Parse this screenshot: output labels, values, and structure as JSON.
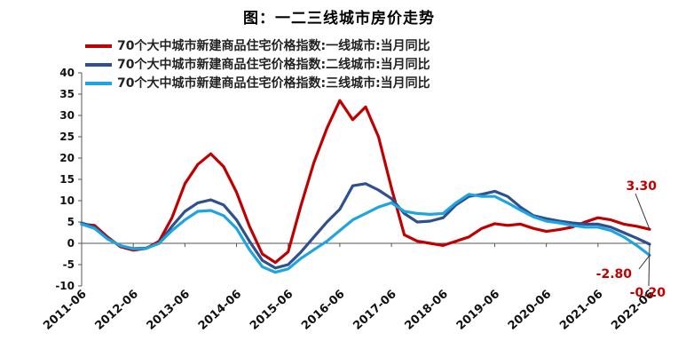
{
  "title": "图：一二三线城市房价走势",
  "chart_data": {
    "type": "line",
    "title": "图：一二三线城市房价走势",
    "xlabel": "",
    "ylabel": "",
    "ylim": [
      -10,
      40
    ],
    "yticks": [
      -10,
      -5,
      0,
      5,
      10,
      15,
      20,
      25,
      30,
      35,
      40
    ],
    "xticks": [
      "2011-06",
      "2012-06",
      "2013-06",
      "2014-06",
      "2015-06",
      "2016-06",
      "2017-06",
      "2018-06",
      "2019-06",
      "2020-06",
      "2021-06",
      "2022-06"
    ],
    "legend_position": "top-left",
    "grid": false,
    "series": [
      {
        "name": "70个大中城市新建商品住宅价格指数:一线城市:当月同比",
        "color": "#c00000",
        "points": [
          [
            "2011-06",
            4.5
          ],
          [
            "2011-09",
            4.2
          ],
          [
            "2011-12",
            1.5
          ],
          [
            "2012-03",
            -0.8
          ],
          [
            "2012-06",
            -1.6
          ],
          [
            "2012-09",
            -1.2
          ],
          [
            "2012-12",
            0.5
          ],
          [
            "2013-03",
            6
          ],
          [
            "2013-06",
            14
          ],
          [
            "2013-09",
            18.5
          ],
          [
            "2013-12",
            21
          ],
          [
            "2014-03",
            18
          ],
          [
            "2014-06",
            12
          ],
          [
            "2014-09",
            4
          ],
          [
            "2014-12",
            -2.5
          ],
          [
            "2015-03",
            -4.5
          ],
          [
            "2015-06",
            -2
          ],
          [
            "2015-09",
            9
          ],
          [
            "2015-12",
            19
          ],
          [
            "2016-03",
            27
          ],
          [
            "2016-06",
            33.5
          ],
          [
            "2016-09",
            29
          ],
          [
            "2016-12",
            32
          ],
          [
            "2017-03",
            25
          ],
          [
            "2017-06",
            13
          ],
          [
            "2017-09",
            2
          ],
          [
            "2017-12",
            0.5
          ],
          [
            "2018-03",
            0
          ],
          [
            "2018-06",
            -0.5
          ],
          [
            "2018-09",
            0.5
          ],
          [
            "2018-12",
            1.5
          ],
          [
            "2019-03",
            3.5
          ],
          [
            "2019-06",
            4.6
          ],
          [
            "2019-09",
            4.2
          ],
          [
            "2019-12",
            4.5
          ],
          [
            "2020-03",
            3.5
          ],
          [
            "2020-06",
            2.8
          ],
          [
            "2020-09",
            3.2
          ],
          [
            "2020-12",
            3.8
          ],
          [
            "2021-03",
            5
          ],
          [
            "2021-06",
            6
          ],
          [
            "2021-09",
            5.5
          ],
          [
            "2021-12",
            4.5
          ],
          [
            "2022-03",
            4
          ],
          [
            "2022-06",
            3.3
          ]
        ]
      },
      {
        "name": "70个大中城市新建商品住宅价格指数:二线城市:当月同比",
        "color": "#2f4f8f",
        "points": [
          [
            "2011-06",
            4.8
          ],
          [
            "2011-09",
            3.8
          ],
          [
            "2011-12",
            1.2
          ],
          [
            "2012-03",
            -0.6
          ],
          [
            "2012-06",
            -1.2
          ],
          [
            "2012-09",
            -1.1
          ],
          [
            "2012-12",
            0
          ],
          [
            "2013-03",
            4
          ],
          [
            "2013-06",
            7.5
          ],
          [
            "2013-09",
            9.5
          ],
          [
            "2013-12",
            10.2
          ],
          [
            "2014-03",
            9
          ],
          [
            "2014-06",
            5.5
          ],
          [
            "2014-09",
            0.5
          ],
          [
            "2014-12",
            -4
          ],
          [
            "2015-03",
            -5.8
          ],
          [
            "2015-06",
            -5
          ],
          [
            "2015-09",
            -2
          ],
          [
            "2015-12",
            1.5
          ],
          [
            "2016-03",
            5
          ],
          [
            "2016-06",
            8
          ],
          [
            "2016-09",
            13.5
          ],
          [
            "2016-12",
            14
          ],
          [
            "2017-03",
            12.5
          ],
          [
            "2017-06",
            10.5
          ],
          [
            "2017-09",
            7
          ],
          [
            "2017-12",
            5
          ],
          [
            "2018-03",
            5.2
          ],
          [
            "2018-06",
            6
          ],
          [
            "2018-09",
            9
          ],
          [
            "2018-12",
            11
          ],
          [
            "2019-03",
            11.5
          ],
          [
            "2019-06",
            12.2
          ],
          [
            "2019-09",
            11
          ],
          [
            "2019-12",
            8.5
          ],
          [
            "2020-03",
            6.5
          ],
          [
            "2020-06",
            5.8
          ],
          [
            "2020-09",
            5.2
          ],
          [
            "2020-12",
            4.8
          ],
          [
            "2021-03",
            4.5
          ],
          [
            "2021-06",
            4.5
          ],
          [
            "2021-09",
            3.8
          ],
          [
            "2021-12",
            2.5
          ],
          [
            "2022-03",
            1.2
          ],
          [
            "2022-06",
            -0.2
          ]
        ]
      },
      {
        "name": "70个大中城市新建商品住宅价格指数:三线城市:当月同比",
        "color": "#1ea5df",
        "points": [
          [
            "2011-06",
            4.5
          ],
          [
            "2011-09",
            3.5
          ],
          [
            "2011-12",
            1
          ],
          [
            "2012-03",
            -0.5
          ],
          [
            "2012-06",
            -1.3
          ],
          [
            "2012-09",
            -1.2
          ],
          [
            "2012-12",
            0
          ],
          [
            "2013-03",
            3
          ],
          [
            "2013-06",
            5.5
          ],
          [
            "2013-09",
            7.5
          ],
          [
            "2013-12",
            7.7
          ],
          [
            "2014-03",
            6.5
          ],
          [
            "2014-06",
            3.5
          ],
          [
            "2014-09",
            -1.5
          ],
          [
            "2014-12",
            -5.5
          ],
          [
            "2015-03",
            -6.8
          ],
          [
            "2015-06",
            -6
          ],
          [
            "2015-09",
            -3.5
          ],
          [
            "2015-12",
            -1.5
          ],
          [
            "2016-03",
            0.5
          ],
          [
            "2016-06",
            3
          ],
          [
            "2016-09",
            5.5
          ],
          [
            "2016-12",
            7
          ],
          [
            "2017-03",
            8.5
          ],
          [
            "2017-06",
            9.5
          ],
          [
            "2017-09",
            7.5
          ],
          [
            "2017-12",
            7
          ],
          [
            "2018-03",
            6.8
          ],
          [
            "2018-06",
            7
          ],
          [
            "2018-09",
            9.5
          ],
          [
            "2018-12",
            11.5
          ],
          [
            "2019-03",
            11
          ],
          [
            "2019-06",
            11
          ],
          [
            "2019-09",
            9.5
          ],
          [
            "2019-12",
            7.8
          ],
          [
            "2020-03",
            6.2
          ],
          [
            "2020-06",
            5.2
          ],
          [
            "2020-09",
            4.8
          ],
          [
            "2020-12",
            4.2
          ],
          [
            "2021-03",
            3.8
          ],
          [
            "2021-06",
            3.8
          ],
          [
            "2021-09",
            3
          ],
          [
            "2021-12",
            1.5
          ],
          [
            "2022-03",
            -0.5
          ],
          [
            "2022-06",
            -2.8
          ]
        ]
      }
    ],
    "annotations": [
      {
        "text": "3.30",
        "series": 0,
        "color": "#c00000"
      },
      {
        "text": "-2.80",
        "series": 2,
        "color": "#c00000"
      },
      {
        "text": "-0.20",
        "series": 1,
        "color": "#c00000"
      }
    ]
  }
}
